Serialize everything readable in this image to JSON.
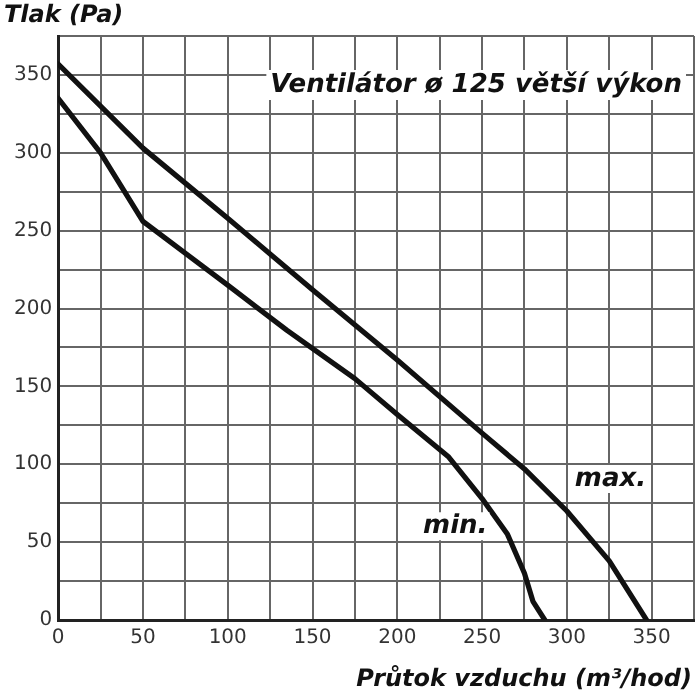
{
  "chart_data": {
    "type": "line",
    "title": "Ventilátor ø 125 větší výkon",
    "ylabel": "Tlak (Pa)",
    "xlabel": "Průtok vzduchu (m³/hod)",
    "xlim": [
      0,
      375
    ],
    "ylim": [
      0,
      375
    ],
    "xticks": [
      0,
      {
        "value": 25,
        "label": null
      },
      50,
      {
        "value": 75,
        "label": null
      },
      100,
      {
        "value": 125,
        "label": null
      },
      150,
      {
        "value": 175,
        "label": null
      },
      200,
      {
        "value": 225,
        "label": null
      },
      250,
      {
        "value": 275,
        "label": null
      },
      300,
      {
        "value": 325,
        "label": null
      },
      350,
      {
        "value": 375,
        "label": null
      }
    ],
    "yticks": [
      0,
      {
        "value": 25,
        "label": null
      },
      50,
      {
        "value": 75,
        "label": null
      },
      100,
      {
        "value": 125,
        "label": null
      },
      150,
      {
        "value": 175,
        "label": null
      },
      200,
      {
        "value": 225,
        "label": null
      },
      250,
      {
        "value": 275,
        "label": null
      },
      300,
      {
        "value": 325,
        "label": null
      },
      350,
      {
        "value": 375,
        "label": null
      }
    ],
    "grid": true,
    "legend": false,
    "marker": "none",
    "line_style": "solid",
    "series": [
      {
        "name": "max.",
        "color": "#111111",
        "x": [
          0,
          50,
          100,
          150,
          200,
          250,
          275,
          300,
          325,
          347
        ],
        "values": [
          357,
          303,
          258,
          212,
          167,
          120,
          97,
          70,
          38,
          0
        ]
      },
      {
        "name": "min.",
        "color": "#111111",
        "x": [
          0,
          25,
          50,
          100,
          135,
          175,
          200,
          230,
          250,
          265,
          275,
          280,
          287
        ],
        "values": [
          335,
          300,
          256,
          215,
          186,
          155,
          132,
          105,
          78,
          55,
          30,
          12,
          0
        ]
      }
    ]
  }
}
